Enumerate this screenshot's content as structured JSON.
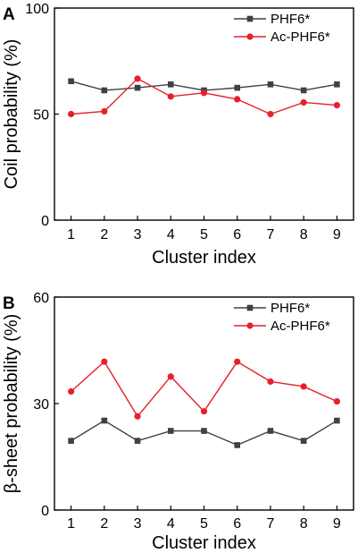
{
  "chart_data": [
    {
      "panel_label": "A",
      "type": "line",
      "xlabel": "Cluster index",
      "ylabel": "Coil probability (%)",
      "x": [
        1,
        2,
        3,
        4,
        5,
        6,
        7,
        8,
        9
      ],
      "xlim": [
        0.5,
        9.5
      ],
      "ylim": [
        0,
        100
      ],
      "yticks": [
        0,
        50,
        100
      ],
      "grid": false,
      "legend_position": "top-right",
      "series": [
        {
          "name": "PHF6*",
          "marker": "square",
          "color": "#404040",
          "values": [
            65.5,
            61.2,
            62.4,
            64.0,
            61.2,
            62.4,
            64.0,
            61.2,
            64.0
          ]
        },
        {
          "name": "Ac-PHF6*",
          "marker": "circle",
          "color": "#e8202a",
          "values": [
            50.0,
            51.3,
            66.7,
            58.3,
            60.0,
            57.0,
            50.0,
            55.5,
            54.2
          ]
        }
      ]
    },
    {
      "panel_label": "B",
      "type": "line",
      "xlabel": "Cluster index",
      "ylabel": "β-sheet probability (%)",
      "x": [
        1,
        2,
        3,
        4,
        5,
        6,
        7,
        8,
        9
      ],
      "xlim": [
        0.5,
        9.5
      ],
      "ylim": [
        0,
        60
      ],
      "yticks": [
        0,
        30,
        60
      ],
      "grid": false,
      "legend_position": "top-right",
      "series": [
        {
          "name": "PHF6*",
          "marker": "square",
          "color": "#404040",
          "values": [
            19.5,
            25.2,
            19.5,
            22.3,
            22.3,
            18.3,
            22.3,
            19.5,
            25.2
          ]
        },
        {
          "name": "Ac-PHF6*",
          "marker": "circle",
          "color": "#e8202a",
          "values": [
            33.4,
            41.8,
            26.4,
            37.6,
            27.8,
            41.8,
            36.2,
            34.8,
            30.6
          ]
        }
      ]
    }
  ]
}
